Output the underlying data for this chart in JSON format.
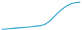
{
  "x": [
    0,
    1,
    2,
    3,
    4,
    5,
    6,
    7,
    8,
    9,
    10,
    11,
    12,
    13,
    14,
    15,
    16,
    17,
    18
  ],
  "y": [
    1.0,
    1.2,
    1.5,
    1.8,
    2.0,
    2.2,
    2.5,
    2.8,
    3.2,
    3.5,
    4.5,
    6.5,
    9.5,
    12.5,
    15.0,
    17.0,
    18.5,
    19.2,
    19.5
  ],
  "line_color": "#1a9bcc",
  "linewidth": 1.1,
  "background_color": "#ffffff",
  "ylim": [
    0.5,
    21
  ],
  "xlim": [
    -0.5,
    18.5
  ]
}
